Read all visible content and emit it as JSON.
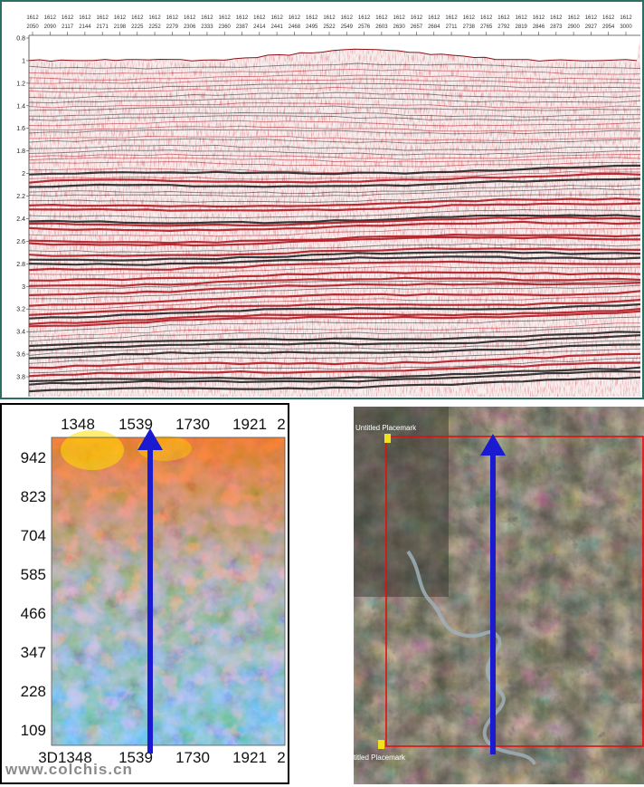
{
  "seismic": {
    "inline": "1612",
    "traces": [
      "2050",
      "2090",
      "2117",
      "2144",
      "2171",
      "2198",
      "2225",
      "2252",
      "2279",
      "2306",
      "2333",
      "2360",
      "2387",
      "2414",
      "2441",
      "2468",
      "2495",
      "2522",
      "2549",
      "2576",
      "2603",
      "2630",
      "2657",
      "2684",
      "2711",
      "2738",
      "2765",
      "2792",
      "2819",
      "2846",
      "2873",
      "2900",
      "2927",
      "2954",
      "3000"
    ],
    "times": [
      "0.8",
      "1",
      "1.2",
      "1.4",
      "1.6",
      "1.8",
      "2",
      "2.2",
      "2.4",
      "2.6",
      "2.8",
      "3",
      "3.2",
      "3.4",
      "3.6",
      "3.8"
    ],
    "colors": {
      "positive": "#b01820",
      "negative": "#222222",
      "background": "#f6eeee",
      "frame": "#2a6f62"
    }
  },
  "attribute_map": {
    "x_ticks": [
      "1348",
      "1539",
      "1730",
      "1921",
      "2"
    ],
    "x_ticks_bottom": [
      "3D1348",
      "1539",
      "1730",
      "1921",
      "2"
    ],
    "y_ticks": [
      "942",
      "823",
      "704",
      "585",
      "466",
      "347",
      "228",
      "109"
    ],
    "arrow_color": "#1a1ad0"
  },
  "satellite": {
    "placemark_top": "Untitled Placemark",
    "placemark_bottom": "titled Placemark",
    "box_color": "#e01010",
    "arrow_color": "#1a1ad0"
  },
  "watermark": "www.colchis.cn"
}
